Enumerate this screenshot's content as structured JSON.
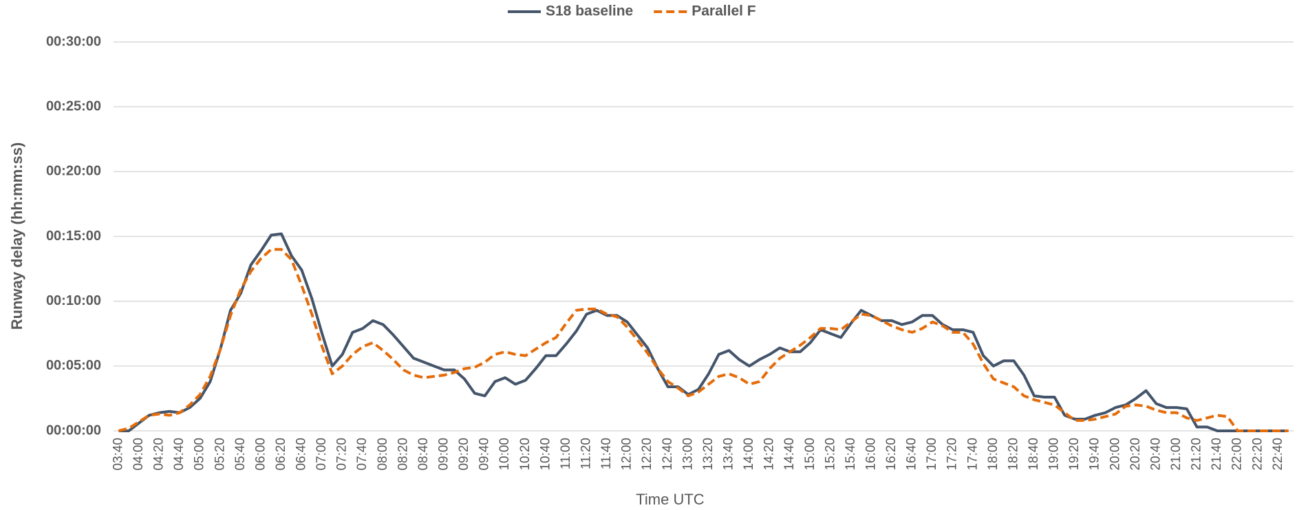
{
  "chart_data": {
    "type": "line",
    "xlabel": "Time UTC",
    "ylabel": "Runway delay (hh:mm:ss)",
    "categories": [
      "03:40",
      null,
      "04:00",
      null,
      "04:20",
      null,
      "04:40",
      null,
      "05:00",
      null,
      "05:20",
      null,
      "05:40",
      null,
      "06:00",
      null,
      "06:20",
      null,
      "06:40",
      null,
      "07:00",
      null,
      "07:20",
      null,
      "07:40",
      null,
      "08:00",
      null,
      "08:20",
      null,
      "08:40",
      null,
      "09:00",
      null,
      "09:20",
      null,
      "09:40",
      null,
      "10:00",
      null,
      "10:20",
      null,
      "10:40",
      null,
      "11:00",
      null,
      "11:20",
      null,
      "11:40",
      null,
      "12:00",
      null,
      "12:20",
      null,
      "12:40",
      null,
      "13:00",
      null,
      "13:20",
      null,
      "13:40",
      null,
      "14:00",
      null,
      "14:20",
      null,
      "14:40",
      null,
      "15:00",
      null,
      "15:20",
      null,
      "15:40",
      null,
      "16:00",
      null,
      "16:20",
      null,
      "16:40",
      null,
      "17:00",
      null,
      "17:20",
      null,
      "17:40",
      null,
      "18:00",
      null,
      "18:20",
      null,
      "18:40",
      null,
      "19:00",
      null,
      "19:20",
      null,
      "19:40",
      null,
      "20:00",
      null,
      "20:20",
      null,
      "20:40",
      null,
      "21:00",
      null,
      "21:20",
      null,
      "21:40",
      null,
      "22:00",
      null,
      "22:20",
      null,
      "22:40",
      null
    ],
    "series": [
      {
        "name": "S18 baseline",
        "color": "#44546a",
        "dash": false,
        "values": [
          0,
          0,
          0.6,
          1.2,
          1.4,
          1.5,
          1.4,
          1.8,
          2.5,
          3.8,
          6.3,
          9.3,
          10.6,
          12.8,
          13.9,
          15.1,
          15.2,
          13.5,
          12.4,
          10.2,
          7.5,
          5.0,
          5.9,
          7.6,
          7.9,
          8.5,
          8.2,
          7.4,
          6.5,
          5.6,
          5.3,
          5.0,
          4.7,
          4.7,
          4.0,
          2.9,
          2.7,
          3.8,
          4.1,
          3.6,
          3.9,
          4.8,
          5.8,
          5.8,
          6.7,
          7.7,
          9.0,
          9.3,
          8.9,
          8.9,
          8.4,
          7.4,
          6.4,
          4.8,
          3.4,
          3.4,
          2.8,
          3.2,
          4.4,
          5.9,
          6.2,
          5.5,
          5.0,
          5.5,
          5.9,
          6.4,
          6.1,
          6.1,
          6.8,
          7.8,
          7.5,
          7.2,
          8.3,
          9.3,
          8.9,
          8.5,
          8.5,
          8.2,
          8.4,
          8.9,
          8.9,
          8.2,
          7.8,
          7.8,
          7.6,
          5.8,
          5.0,
          5.4,
          5.4,
          4.3,
          2.7,
          2.6,
          2.6,
          1.2,
          0.9,
          0.9,
          1.2,
          1.4,
          1.8,
          2.0,
          2.5,
          3.1,
          2.1,
          1.8,
          1.8,
          1.7,
          0.3,
          0.3,
          0,
          0,
          0,
          0,
          0,
          0,
          0,
          0
        ]
      },
      {
        "name": "Parallel F",
        "color": "#e46c0a",
        "dash": true,
        "values": [
          0,
          0.2,
          0.7,
          1.2,
          1.3,
          1.2,
          1.4,
          2.0,
          2.8,
          4.2,
          6.3,
          8.9,
          10.9,
          12.3,
          13.3,
          14.0,
          14.0,
          13.2,
          11.2,
          9.0,
          6.5,
          4.4,
          5.0,
          5.9,
          6.5,
          6.8,
          6.2,
          5.5,
          4.7,
          4.3,
          4.1,
          4.2,
          4.3,
          4.5,
          4.8,
          4.9,
          5.3,
          5.9,
          6.1,
          5.9,
          5.8,
          6.3,
          6.8,
          7.2,
          8.3,
          9.3,
          9.4,
          9.4,
          9.0,
          8.8,
          8.0,
          7.0,
          6.0,
          4.8,
          3.8,
          3.3,
          2.7,
          3.0,
          3.6,
          4.2,
          4.4,
          4.1,
          3.6,
          3.8,
          4.8,
          5.6,
          6.1,
          6.6,
          7.2,
          7.9,
          7.9,
          7.8,
          8.4,
          9.0,
          8.9,
          8.5,
          8.1,
          7.8,
          7.6,
          7.9,
          8.4,
          8.1,
          7.6,
          7.6,
          6.7,
          5.2,
          4.0,
          3.7,
          3.4,
          2.7,
          2.4,
          2.2,
          2.0,
          1.4,
          0.8,
          0.8,
          0.9,
          1.1,
          1.3,
          1.9,
          2.0,
          1.9,
          1.6,
          1.4,
          1.4,
          1.0,
          0.8,
          1.0,
          1.2,
          1.1,
          0,
          0,
          0,
          0,
          0,
          0
        ]
      }
    ],
    "ylim": [
      0,
      30
    ],
    "yticks": [
      {
        "value": 0,
        "label": "00:00:00"
      },
      {
        "value": 5,
        "label": "00:05:00"
      },
      {
        "value": 10,
        "label": "00:10:00"
      },
      {
        "value": 15,
        "label": "00:15:00"
      },
      {
        "value": 20,
        "label": "00:20:00"
      },
      {
        "value": 25,
        "label": "00:25:00"
      },
      {
        "value": 30,
        "label": "00:30:00"
      }
    ],
    "grid": true,
    "legend": "top"
  }
}
